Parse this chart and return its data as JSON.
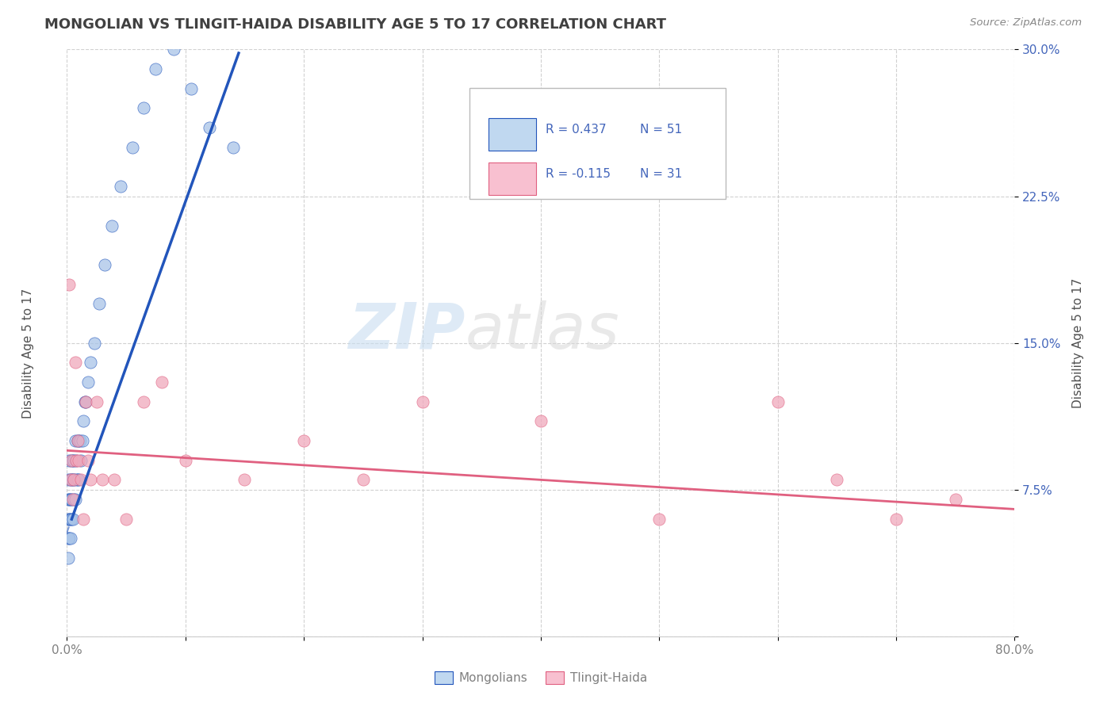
{
  "title": "MONGOLIAN VS TLINGIT-HAIDA DISABILITY AGE 5 TO 17 CORRELATION CHART",
  "source": "Source: ZipAtlas.com",
  "ylabel": "Disability Age 5 to 17",
  "xlim": [
    0.0,
    0.8
  ],
  "ylim": [
    0.0,
    0.3
  ],
  "xticks": [
    0.0,
    0.1,
    0.2,
    0.3,
    0.4,
    0.5,
    0.6,
    0.7,
    0.8
  ],
  "xticklabels": [
    "0.0%",
    "",
    "",
    "",
    "",
    "",
    "",
    "",
    "80.0%"
  ],
  "yticks": [
    0.0,
    0.075,
    0.15,
    0.225,
    0.3
  ],
  "yticklabels": [
    "",
    "7.5%",
    "15.0%",
    "22.5%",
    "30.0%"
  ],
  "mongolian_color": "#a8c4e8",
  "tlingit_color": "#f0a8bc",
  "trendline_mongolian_color": "#2255bb",
  "trendline_tlingit_color": "#e06080",
  "legend_mongolian_fill": "#c0d8f0",
  "legend_tlingit_fill": "#f8c0d0",
  "R_mongolian": 0.437,
  "N_mongolian": 51,
  "R_tlingit": -0.115,
  "N_tlingit": 31,
  "mongolian_x": [
    0.001,
    0.001,
    0.001,
    0.001,
    0.001,
    0.002,
    0.002,
    0.002,
    0.002,
    0.003,
    0.003,
    0.003,
    0.003,
    0.004,
    0.004,
    0.004,
    0.004,
    0.005,
    0.005,
    0.005,
    0.006,
    0.006,
    0.006,
    0.007,
    0.007,
    0.008,
    0.008,
    0.009,
    0.009,
    0.01,
    0.01,
    0.011,
    0.012,
    0.013,
    0.014,
    0.015,
    0.016,
    0.018,
    0.02,
    0.023,
    0.027,
    0.032,
    0.038,
    0.045,
    0.055,
    0.065,
    0.075,
    0.09,
    0.105,
    0.12,
    0.14
  ],
  "mongolian_y": [
    0.04,
    0.05,
    0.06,
    0.07,
    0.08,
    0.05,
    0.06,
    0.07,
    0.09,
    0.05,
    0.06,
    0.07,
    0.08,
    0.06,
    0.07,
    0.08,
    0.09,
    0.06,
    0.08,
    0.09,
    0.07,
    0.08,
    0.09,
    0.07,
    0.1,
    0.08,
    0.09,
    0.08,
    0.1,
    0.08,
    0.1,
    0.1,
    0.09,
    0.1,
    0.11,
    0.12,
    0.12,
    0.13,
    0.14,
    0.15,
    0.17,
    0.19,
    0.21,
    0.23,
    0.25,
    0.27,
    0.29,
    0.3,
    0.28,
    0.26,
    0.25
  ],
  "tlingit_x": [
    0.002,
    0.003,
    0.004,
    0.005,
    0.006,
    0.007,
    0.008,
    0.009,
    0.01,
    0.012,
    0.014,
    0.016,
    0.018,
    0.02,
    0.025,
    0.03,
    0.04,
    0.05,
    0.065,
    0.08,
    0.1,
    0.15,
    0.2,
    0.25,
    0.3,
    0.4,
    0.5,
    0.6,
    0.65,
    0.7,
    0.75
  ],
  "tlingit_y": [
    0.18,
    0.08,
    0.09,
    0.07,
    0.08,
    0.14,
    0.09,
    0.1,
    0.09,
    0.08,
    0.06,
    0.12,
    0.09,
    0.08,
    0.12,
    0.08,
    0.08,
    0.06,
    0.12,
    0.13,
    0.09,
    0.08,
    0.1,
    0.08,
    0.12,
    0.11,
    0.06,
    0.12,
    0.08,
    0.06,
    0.07
  ],
  "watermark_zip": "ZIP",
  "watermark_atlas": "atlas",
  "background_color": "#ffffff",
  "grid_color": "#cccccc",
  "title_color": "#404040",
  "axis_label_color": "#505050",
  "tick_label_color_y": "#4466bb",
  "tick_label_color_x": "#808080",
  "legend_text_color": "#000000",
  "legend_num_color": "#4466bb"
}
